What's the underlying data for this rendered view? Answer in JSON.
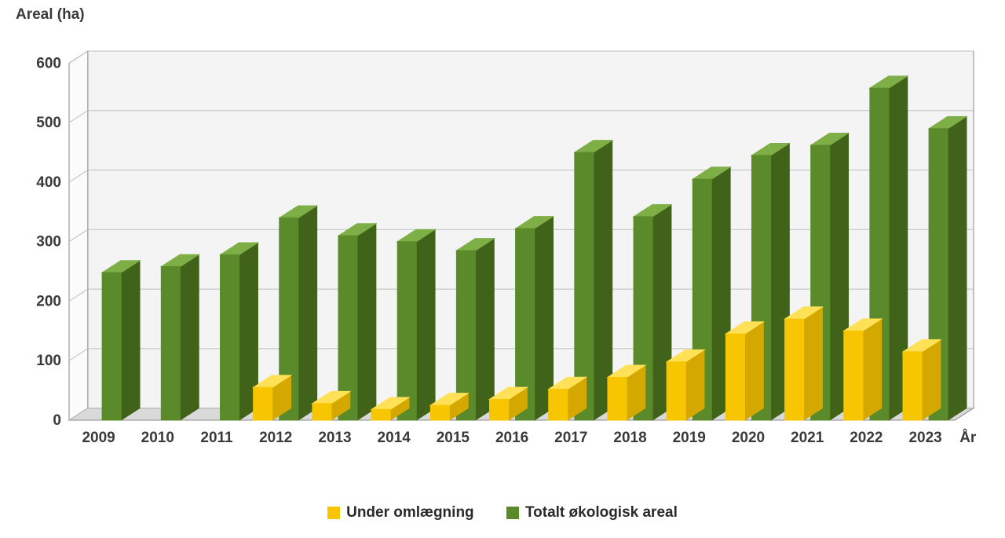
{
  "chart": {
    "type": "bar-3d-grouped",
    "y_axis_title": "Areal (ha)",
    "x_axis_title": "År",
    "background_color": "#ffffff",
    "plot_fill": "#fbfbfb",
    "floor_fill": "#d9d9d9",
    "back_wall_fill": "#f4f4f4",
    "grid_color": "#bfbfbf",
    "axis_line_color": "#8a8a8a",
    "tick_font_size": 19,
    "tick_font_weight": "bold",
    "tick_color": "#3a3a3a",
    "title_font_size": 19,
    "ylim": [
      0,
      600
    ],
    "ytick_step": 100,
    "bar_width": 0.32,
    "depth": 28,
    "categories": [
      "2009",
      "2010",
      "2011",
      "2012",
      "2013",
      "2014",
      "2015",
      "2016",
      "2017",
      "2018",
      "2019",
      "2020",
      "2021",
      "2022",
      "2023"
    ],
    "series": [
      {
        "name": "Under omlægning",
        "color_front": "#f7c600",
        "color_top": "#ffe157",
        "color_side": "#d5a800",
        "values": [
          0,
          0,
          0,
          55,
          28,
          18,
          25,
          35,
          52,
          72,
          98,
          145,
          170,
          150,
          115
        ]
      },
      {
        "name": "Totalt økologisk areal",
        "color_front": "#5b8a2a",
        "color_top": "#7eae46",
        "color_side": "#416219",
        "values": [
          248,
          258,
          278,
          340,
          310,
          300,
          285,
          322,
          450,
          342,
          405,
          445,
          462,
          558,
          490
        ]
      }
    ],
    "legend": {
      "items": [
        {
          "label": "Under omlægning",
          "swatch": "#f7c600"
        },
        {
          "label": "Totalt økologisk areal",
          "swatch": "#5b8a2a"
        }
      ]
    }
  }
}
